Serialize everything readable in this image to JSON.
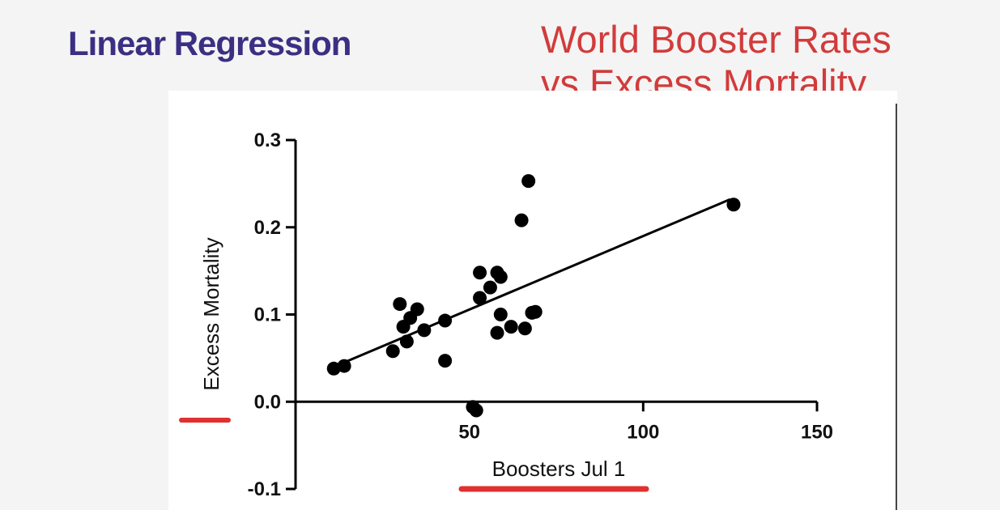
{
  "slide": {
    "title": "Linear Regression",
    "subtitle_line1": "World Booster Rates",
    "subtitle_line2": "vs Excess Mortality"
  },
  "colors": {
    "title": "#3b2f83",
    "subtitle": "#d23b3b",
    "highlight": "#e03030",
    "points": "#000000"
  },
  "chart_data": {
    "type": "scatter",
    "xlabel": "Boosters Jul 1",
    "ylabel": "Excess Mortality",
    "xlim": [
      0,
      150
    ],
    "ylim": [
      -0.1,
      0.3
    ],
    "xticks": [
      50,
      100,
      150
    ],
    "yticks": [
      -0.1,
      0.0,
      0.1,
      0.2,
      0.3
    ],
    "ytick_labels": [
      "-0.1",
      "0.0",
      "0.1",
      "0.2",
      "0.3"
    ],
    "grid": false,
    "points": [
      {
        "x": 11,
        "y": 0.038
      },
      {
        "x": 14,
        "y": 0.041
      },
      {
        "x": 28,
        "y": 0.058
      },
      {
        "x": 30,
        "y": 0.112
      },
      {
        "x": 31,
        "y": 0.086
      },
      {
        "x": 32,
        "y": 0.069
      },
      {
        "x": 33,
        "y": 0.096
      },
      {
        "x": 35,
        "y": 0.106
      },
      {
        "x": 37,
        "y": 0.082
      },
      {
        "x": 43,
        "y": 0.093
      },
      {
        "x": 43,
        "y": 0.047
      },
      {
        "x": 51,
        "y": -0.006
      },
      {
        "x": 52,
        "y": -0.01
      },
      {
        "x": 53,
        "y": 0.119
      },
      {
        "x": 53,
        "y": 0.148
      },
      {
        "x": 56,
        "y": 0.131
      },
      {
        "x": 58,
        "y": 0.148
      },
      {
        "x": 58,
        "y": 0.079
      },
      {
        "x": 59,
        "y": 0.143
      },
      {
        "x": 59,
        "y": 0.1
      },
      {
        "x": 62,
        "y": 0.086
      },
      {
        "x": 65,
        "y": 0.208
      },
      {
        "x": 66,
        "y": 0.084
      },
      {
        "x": 67,
        "y": 0.253
      },
      {
        "x": 68,
        "y": 0.102
      },
      {
        "x": 69,
        "y": 0.103
      },
      {
        "x": 126,
        "y": 0.226
      }
    ],
    "regression_line": {
      "x": [
        11,
        125
      ],
      "y": [
        0.04,
        0.232
      ]
    }
  }
}
